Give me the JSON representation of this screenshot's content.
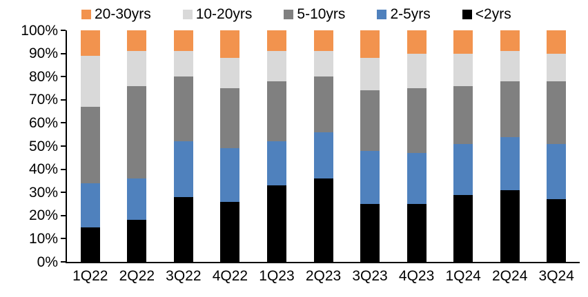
{
  "chart": {
    "background_color": "#FFFFFF",
    "axis_color": "#000000",
    "text_color": "#000000"
  },
  "chart_data": {
    "type": "bar",
    "stacked": true,
    "percent_stacked": true,
    "title": "",
    "xlabel": "",
    "ylabel": "",
    "ylim": [
      0,
      100
    ],
    "y_tick_step": 10,
    "y_tick_labels": [
      "0%",
      "10%",
      "20%",
      "30%",
      "40%",
      "50%",
      "60%",
      "70%",
      "80%",
      "90%",
      "100%"
    ],
    "grid": false,
    "categories": [
      "1Q22",
      "2Q22",
      "3Q22",
      "4Q22",
      "1Q23",
      "2Q23",
      "3Q23",
      "4Q23",
      "1Q24",
      "2Q24",
      "3Q24"
    ],
    "series": [
      {
        "name": "<2yrs",
        "color": "#000000",
        "values": [
          15,
          18,
          28,
          26,
          33,
          36,
          25,
          25,
          29,
          31,
          27
        ]
      },
      {
        "name": "2-5yrs",
        "color": "#4F81BD",
        "values": [
          19,
          18,
          24,
          23,
          19,
          20,
          23,
          22,
          22,
          23,
          24
        ]
      },
      {
        "name": "5-10yrs",
        "color": "#808080",
        "values": [
          33,
          40,
          28,
          26,
          26,
          24,
          26,
          28,
          25,
          24,
          27
        ]
      },
      {
        "name": "10-20yrs",
        "color": "#D9D9D9",
        "values": [
          22,
          15,
          11,
          13,
          13,
          11,
          14,
          15,
          14,
          13,
          12
        ]
      },
      {
        "name": "20-30yrs",
        "color": "#F2934E",
        "values": [
          11,
          9,
          9,
          12,
          9,
          9,
          12,
          10,
          10,
          9,
          10
        ]
      }
    ],
    "legend": {
      "position": "top",
      "order": [
        "20-30yrs",
        "10-20yrs",
        "5-10yrs",
        "2-5yrs",
        "<2yrs"
      ]
    }
  }
}
